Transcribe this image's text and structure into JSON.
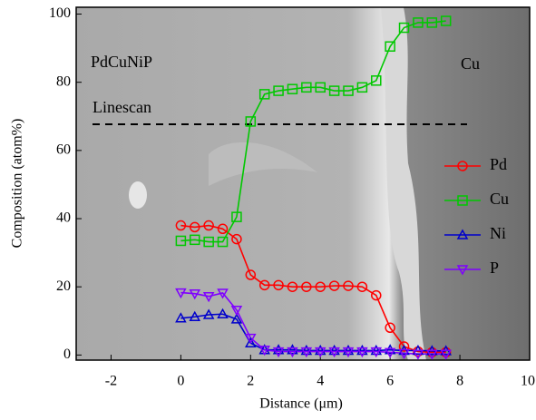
{
  "chart_data": {
    "type": "line",
    "x_label": "Distance (μm)",
    "y_label": "Composition (atom%)",
    "annotations": [
      "PdCuNiP",
      "Cu",
      "Linescan"
    ],
    "x": [
      0,
      0.4,
      0.8,
      1.2,
      1.6,
      2.0,
      2.4,
      2.8,
      3.2,
      3.6,
      4.0,
      4.4,
      4.8,
      5.2,
      5.6,
      6.0,
      6.4,
      6.8,
      7.2,
      7.6
    ],
    "series": [
      {
        "name": "Pd",
        "color": "#ff0000",
        "marker": "circle",
        "values": [
          38,
          37.5,
          38,
          37,
          34,
          23.5,
          20.5,
          20.5,
          20,
          20,
          20,
          20.3,
          20.3,
          20,
          17.5,
          8,
          2.5,
          1,
          0.8,
          0.8
        ]
      },
      {
        "name": "Cu",
        "color": "#00c800",
        "marker": "square",
        "values": [
          33.5,
          33.8,
          33.2,
          33.2,
          40.5,
          68.5,
          76.5,
          77.5,
          78,
          78.5,
          78.5,
          77.5,
          77.5,
          78.5,
          80.5,
          90.5,
          96,
          97.5,
          97.5,
          98
        ]
      },
      {
        "name": "Ni",
        "color": "#0000cc",
        "marker": "triangle-up",
        "values": [
          10.8,
          11.2,
          11.8,
          12,
          10.5,
          3.5,
          1.5,
          1.5,
          1.5,
          1.3,
          1.3,
          1.3,
          1.3,
          1.3,
          1.3,
          1.5,
          1.3,
          1.3,
          1.2,
          1.2
        ]
      },
      {
        "name": "P",
        "color": "#7f00ff",
        "marker": "triangle-down",
        "values": [
          18.3,
          18,
          17.2,
          18.2,
          13.2,
          5,
          1.5,
          1,
          1,
          1,
          1,
          1,
          1,
          1,
          1,
          0.8,
          0.5,
          0.3,
          0.3,
          0.3
        ]
      }
    ],
    "xlim": [
      -3,
      10
    ],
    "xticks": [
      -2,
      0,
      2,
      4,
      6,
      8,
      10
    ],
    "ylim": [
      -1.5,
      102
    ],
    "yticks": [
      0,
      20,
      40,
      60,
      80,
      100
    ]
  }
}
